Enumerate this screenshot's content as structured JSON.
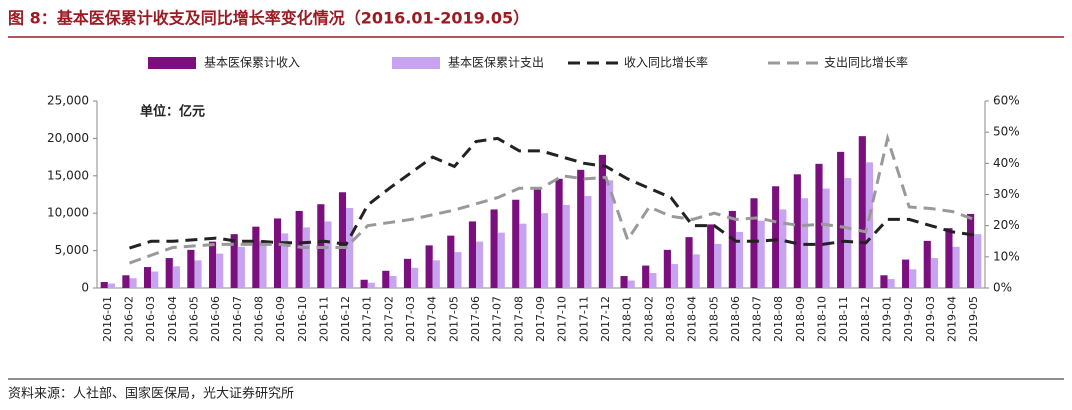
{
  "chart_data": {
    "type": "bar_line",
    "title": "图 8：基本医保累计收支及同比增长率变化情况（2016.01-2019.05）",
    "annotation": "单位：亿元",
    "source": "资料来源：人社部、国家医保局，光大证券研究所",
    "categories": [
      "2016-01",
      "2016-02",
      "2016-03",
      "2016-04",
      "2016-05",
      "2016-06",
      "2016-07",
      "2016-08",
      "2016-09",
      "2016-10",
      "2016-11",
      "2016-12",
      "2017-01",
      "2017-02",
      "2017-03",
      "2017-04",
      "2017-05",
      "2017-06",
      "2017-07",
      "2017-08",
      "2017-09",
      "2017-10",
      "2017-11",
      "2017-12",
      "2018-01",
      "2018-02",
      "2018-03",
      "2018-04",
      "2018-05",
      "2018-06",
      "2018-07",
      "2018-08",
      "2018-09",
      "2018-10",
      "2018-11",
      "2018-12",
      "2019-01",
      "2019-02",
      "2019-03",
      "2019-04",
      "2019-05"
    ],
    "series": [
      {
        "name": "基本医保累计收入",
        "kind": "bar",
        "color": "#7b0f7e",
        "values": [
          800,
          1700,
          2800,
          4000,
          5100,
          6200,
          7200,
          8200,
          9300,
          10300,
          11200,
          12800,
          1100,
          2300,
          3900,
          5700,
          7000,
          8900,
          10500,
          11800,
          13400,
          14600,
          15800,
          17800,
          1600,
          3000,
          5100,
          6800,
          8500,
          10300,
          12000,
          13600,
          15200,
          16600,
          18200,
          20300,
          1700,
          3800,
          6300,
          8000,
          9900
        ]
      },
      {
        "name": "基本医保累计支出",
        "kind": "bar",
        "color": "#c7a4f0",
        "values": [
          600,
          1300,
          2200,
          2900,
          3700,
          4600,
          5500,
          6300,
          7300,
          8100,
          8900,
          10700,
          700,
          1600,
          2700,
          3700,
          4800,
          6200,
          7400,
          8600,
          10000,
          11100,
          12300,
          14400,
          1000,
          2000,
          3200,
          4500,
          5900,
          7500,
          9000,
          10500,
          12000,
          13300,
          14700,
          16800,
          1200,
          2500,
          4000,
          5500,
          7200
        ]
      },
      {
        "name": "收入同比增长率",
        "kind": "line",
        "axis": "y2",
        "color": "#222222",
        "values": [
          null,
          12.8,
          15,
          15,
          15.5,
          16,
          15,
          15,
          14.5,
          14.5,
          15,
          14,
          26.6,
          32,
          37,
          42,
          39,
          47,
          48,
          44,
          44,
          42,
          40,
          39,
          35,
          32,
          29,
          20,
          20,
          15,
          15,
          15.5,
          14,
          14,
          15,
          14.5,
          22,
          22,
          20,
          18,
          17
        ]
      },
      {
        "name": "支出同比增长率",
        "kind": "line",
        "axis": "y2",
        "color": "#999999",
        "values": [
          null,
          8,
          10.5,
          13,
          13.5,
          14,
          14,
          14,
          14,
          13,
          13,
          13,
          20,
          21,
          22,
          23.5,
          25,
          27,
          29,
          32,
          32,
          36,
          35,
          35.5,
          15.5,
          26,
          23,
          22,
          24,
          22,
          22.5,
          21,
          20,
          20.5,
          19.5,
          18,
          48,
          26,
          25.5,
          24.5,
          22
        ]
      }
    ],
    "ylim": [
      0,
      25000
    ],
    "yticks": [
      0,
      {
        "value": 5000,
        "label": "5,000"
      },
      {
        "value": 10000,
        "label": "10,000"
      },
      {
        "value": 15000,
        "label": "15,000"
      },
      {
        "value": 20000,
        "label": "20,000"
      },
      {
        "value": 25000,
        "label": "25,000"
      }
    ],
    "y2lim": [
      0,
      60
    ],
    "y2ticks": [
      {
        "value": 0,
        "label": "0%"
      },
      {
        "value": 10,
        "label": "10%"
      },
      {
        "value": 20,
        "label": "20%"
      },
      {
        "value": 30,
        "label": "30%"
      },
      {
        "value": 40,
        "label": "40%"
      },
      {
        "value": 50,
        "label": "50%"
      },
      {
        "value": 60,
        "label": "60%"
      }
    ]
  }
}
